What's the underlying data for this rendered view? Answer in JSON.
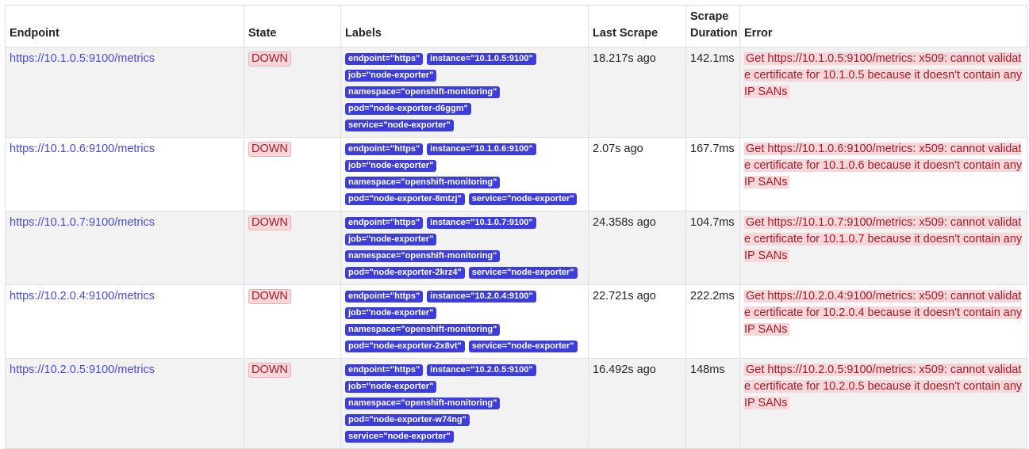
{
  "table": {
    "headers": {
      "endpoint": "Endpoint",
      "state": "State",
      "labels": "Labels",
      "last_scrape": "Last Scrape",
      "scrape_duration": "Scrape Duration",
      "error": "Error"
    },
    "rows": [
      {
        "endpoint": "https://10.1.0.5:9100/metrics",
        "state": "DOWN",
        "labels": [
          "endpoint=\"https\"",
          "instance=\"10.1.0.5:9100\"",
          "job=\"node-exporter\"",
          "namespace=\"openshift-monitoring\"",
          "pod=\"node-exporter-d6ggm\"",
          "service=\"node-exporter\""
        ],
        "last_scrape": "18.217s ago",
        "scrape_duration": "142.1ms",
        "error": "Get https://10.1.0.5:9100/metrics: x509: cannot validate certificate for 10.1.0.5 because it doesn't contain any IP SANs"
      },
      {
        "endpoint": "https://10.1.0.6:9100/metrics",
        "state": "DOWN",
        "labels": [
          "endpoint=\"https\"",
          "instance=\"10.1.0.6:9100\"",
          "job=\"node-exporter\"",
          "namespace=\"openshift-monitoring\"",
          "pod=\"node-exporter-8mtzj\"",
          "service=\"node-exporter\""
        ],
        "last_scrape": "2.07s ago",
        "scrape_duration": "167.7ms",
        "error": "Get https://10.1.0.6:9100/metrics: x509: cannot validate certificate for 10.1.0.6 because it doesn't contain any IP SANs"
      },
      {
        "endpoint": "https://10.1.0.7:9100/metrics",
        "state": "DOWN",
        "labels": [
          "endpoint=\"https\"",
          "instance=\"10.1.0.7:9100\"",
          "job=\"node-exporter\"",
          "namespace=\"openshift-monitoring\"",
          "pod=\"node-exporter-2krz4\"",
          "service=\"node-exporter\""
        ],
        "last_scrape": "24.358s ago",
        "scrape_duration": "104.7ms",
        "error": "Get https://10.1.0.7:9100/metrics: x509: cannot validate certificate for 10.1.0.7 because it doesn't contain any IP SANs"
      },
      {
        "endpoint": "https://10.2.0.4:9100/metrics",
        "state": "DOWN",
        "labels": [
          "endpoint=\"https\"",
          "instance=\"10.2.0.4:9100\"",
          "job=\"node-exporter\"",
          "namespace=\"openshift-monitoring\"",
          "pod=\"node-exporter-2x8vt\"",
          "service=\"node-exporter\""
        ],
        "last_scrape": "22.721s ago",
        "scrape_duration": "222.2ms",
        "error": "Get https://10.2.0.4:9100/metrics: x509: cannot validate certificate for 10.2.0.4 because it doesn't contain any IP SANs"
      },
      {
        "endpoint": "https://10.2.0.5:9100/metrics",
        "state": "DOWN",
        "labels": [
          "endpoint=\"https\"",
          "instance=\"10.2.0.5:9100\"",
          "job=\"node-exporter\"",
          "namespace=\"openshift-monitoring\"",
          "pod=\"node-exporter-w74ng\"",
          "service=\"node-exporter\""
        ],
        "last_scrape": "16.492s ago",
        "scrape_duration": "148ms",
        "error": "Get https://10.2.0.5:9100/metrics: x509: cannot validate certificate for 10.2.0.5 because it doesn't contain any IP SANs"
      }
    ]
  },
  "colors": {
    "link": "#4a4ae0",
    "label_badge_bg": "#3d3ddb",
    "down_badge_bg": "#f8d7da",
    "down_badge_text": "#a21d2a",
    "striped_row_bg": "#f2f2f2"
  }
}
